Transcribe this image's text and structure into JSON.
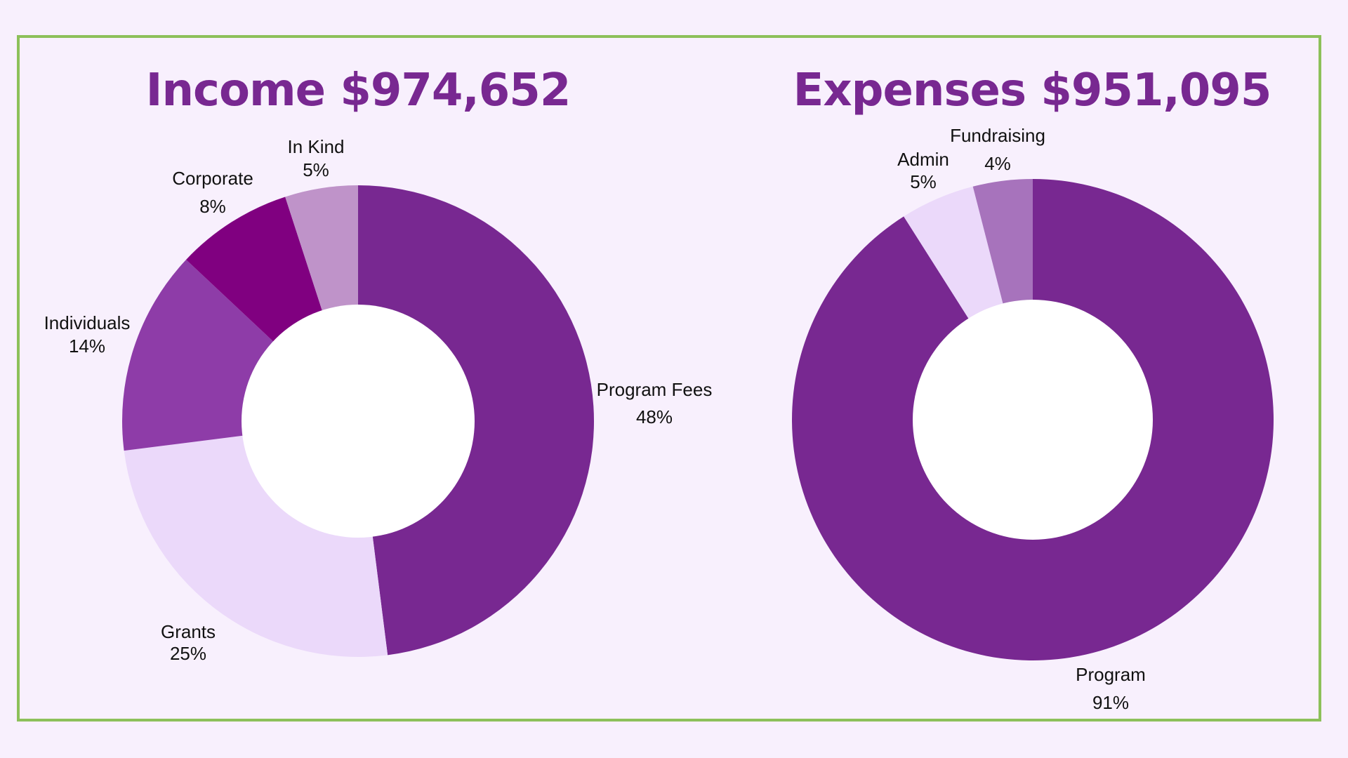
{
  "colors": {
    "background": "#F8F0FD",
    "border": "#8DC05A",
    "title": "#782891",
    "hole": "#FFFFFF"
  },
  "chart_data": [
    {
      "type": "donut",
      "title": "Income $974,652",
      "start": "top, clockwise",
      "slices": [
        {
          "label": "Program Fees",
          "value": 48,
          "display": "48%",
          "color": "#782891"
        },
        {
          "label": "Grants",
          "value": 25,
          "display": "25%",
          "color": "#EBD9FA"
        },
        {
          "label": "Individuals",
          "value": 14,
          "display": "14%",
          "color": "#8E3CA8"
        },
        {
          "label": "Corporate",
          "value": 8,
          "display": "8%",
          "color": "#800080"
        },
        {
          "label": "In Kind",
          "value": 5,
          "display": "5%",
          "color": "#BF93C9"
        }
      ]
    },
    {
      "type": "donut",
      "title": "Expenses $951,095",
      "start": "top, clockwise",
      "slices": [
        {
          "label": "Program",
          "value": 91,
          "display": "91%",
          "color": "#782891"
        },
        {
          "label": "Admin",
          "value": 5,
          "display": "5%",
          "color": "#EBD9FA"
        },
        {
          "label": "Fundraising",
          "value": 4,
          "display": "4%",
          "color": "#A773BC"
        }
      ]
    }
  ]
}
